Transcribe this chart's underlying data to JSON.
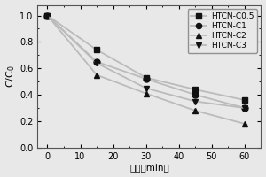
{
  "series": {
    "HTCN-C0.5": {
      "x": [
        0,
        15,
        30,
        45,
        60
      ],
      "y": [
        1.0,
        0.74,
        0.53,
        0.44,
        0.36
      ],
      "marker": "s",
      "color": "#111111"
    },
    "HTCN-C1": {
      "x": [
        0,
        15,
        30,
        45,
        60
      ],
      "y": [
        1.0,
        0.65,
        0.52,
        0.4,
        0.3
      ],
      "marker": "o",
      "color": "#111111"
    },
    "HTCN-C2": {
      "x": [
        0,
        15,
        30,
        45,
        60
      ],
      "y": [
        1.0,
        0.55,
        0.41,
        0.28,
        0.18
      ],
      "marker": "^",
      "color": "#111111"
    },
    "HTCN-C3": {
      "x": [
        0,
        15,
        30,
        45,
        60
      ],
      "y": [
        1.0,
        0.64,
        0.45,
        0.35,
        0.3
      ],
      "marker": "v",
      "color": "#111111"
    }
  },
  "xlabel": "时间（min）",
  "ylabel": "C/C$_0$",
  "xlim": [
    -3,
    65
  ],
  "ylim": [
    0.0,
    1.08
  ],
  "xticks": [
    0,
    10,
    20,
    30,
    40,
    50,
    60
  ],
  "yticks": [
    0.0,
    0.2,
    0.4,
    0.6,
    0.8,
    1.0
  ],
  "line_color": "#bbbbbb",
  "marker_size": 5,
  "legend_order": [
    "HTCN-C0.5",
    "HTCN-C1",
    "HTCN-C2",
    "HTCN-C3"
  ],
  "bg_color": "#e8e8e8"
}
